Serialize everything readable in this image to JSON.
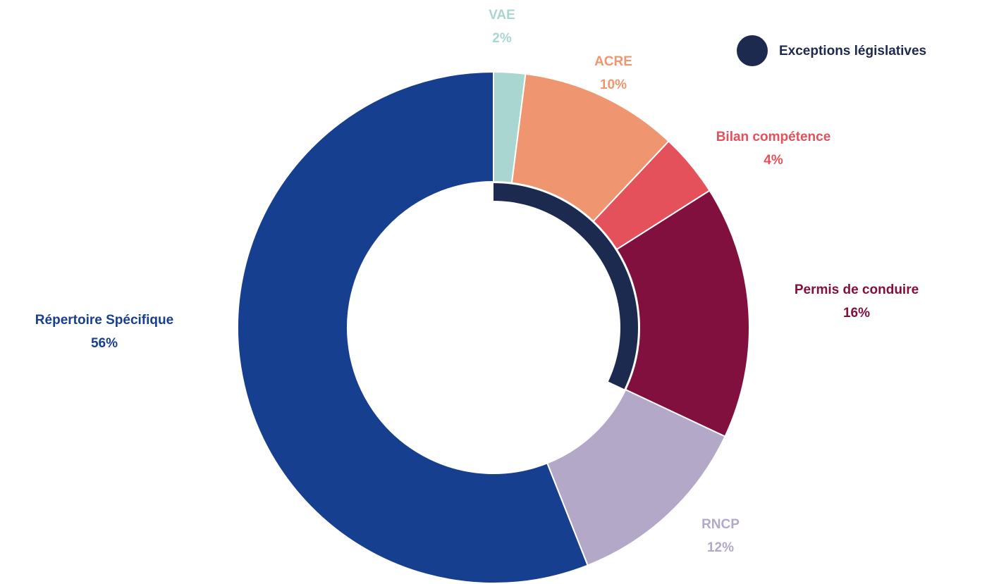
{
  "chart_data": {
    "type": "donut",
    "categories": [
      "VAE",
      "ACRE",
      "Bilan compétence",
      "Permis de conduire",
      "RNCP",
      "Répertoire Spécifique"
    ],
    "values": [
      2,
      10,
      4,
      16,
      12,
      56
    ],
    "value_labels": [
      "2%",
      "10%",
      "4%",
      "16%",
      "12%",
      "56%"
    ],
    "colors": [
      "#a9d6d0",
      "#ef9670",
      "#e5515a",
      "#82103f",
      "#b4a8c8",
      "#173f8f"
    ],
    "inner_arc": {
      "name": "Exceptions législatives",
      "value": 32,
      "color": "#1b2a4e"
    },
    "legend": "top-right"
  }
}
